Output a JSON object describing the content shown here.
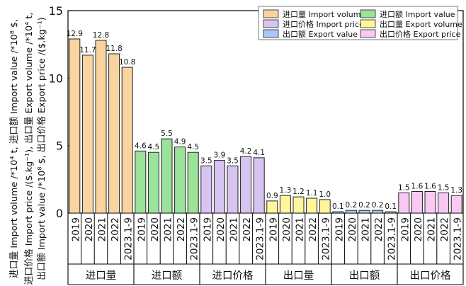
{
  "chart_data": {
    "type": "bar",
    "ylabel_lines": [
      "进口量 Import volume /*10⁴ t, 进口额 Import value /*10⁸ $,",
      "进口价格 Import price /($.kg⁻¹), 出口量 Export volume /*10⁴ t,",
      "出口额 Import value /*10⁸ $, 出口价格 Export price /($.kg⁻¹)"
    ],
    "ylim": [
      0,
      15
    ],
    "y_ticks": [
      0,
      5,
      10,
      15
    ],
    "legend_position": "top-right",
    "legend": [
      {
        "label": "进口量 Import volume",
        "color": "#f8d59e"
      },
      {
        "label": "进口额 Import value",
        "color": "#9be29b"
      },
      {
        "label": "进口价格 Import price",
        "color": "#d7c4f0"
      },
      {
        "label": "出口量 Export volume",
        "color": "#fff59a"
      },
      {
        "label": "出口额 Export value",
        "color": "#a8c8f8"
      },
      {
        "label": "出口价格 Export price",
        "color": "#f9c8f3"
      }
    ],
    "groups": [
      {
        "name": "进口量",
        "color": "#f8d59e",
        "years": [
          "2019",
          "2020",
          "2021",
          "2022",
          "2023.1-9"
        ],
        "values": [
          12.9,
          11.7,
          12.8,
          11.8,
          10.8
        ],
        "value_labels": [
          "12.9",
          "11.7",
          "12.8",
          "11.8",
          "10.8"
        ]
      },
      {
        "name": "进口额",
        "color": "#9be29b",
        "years": [
          "2019",
          "2020",
          "2021",
          "2022",
          "2023.1-9"
        ],
        "values": [
          4.6,
          4.5,
          5.5,
          4.9,
          4.5
        ],
        "value_labels": [
          "4.6",
          "4.5",
          "5.5",
          "4.9",
          "4.5"
        ]
      },
      {
        "name": "进口价格",
        "color": "#d7c4f0",
        "years": [
          "2019",
          "2020",
          "2021",
          "2022",
          "2023.1-9"
        ],
        "values": [
          3.5,
          3.9,
          3.5,
          4.2,
          4.1
        ],
        "value_labels": [
          "3.5",
          "3.9",
          "3.5",
          "4.2",
          "4.1"
        ]
      },
      {
        "name": "出口量",
        "color": "#fff59a",
        "years": [
          "2019",
          "2020",
          "2021",
          "2022",
          "2023.1-9"
        ],
        "values": [
          0.9,
          1.3,
          1.2,
          1.1,
          1.0
        ],
        "value_labels": [
          "0.9",
          "1.3",
          "1.2",
          "1.1",
          "1.0"
        ]
      },
      {
        "name": "出口额",
        "color": "#a8c8f8",
        "years": [
          "2019",
          "2020",
          "2021",
          "2022",
          "2023.1-9"
        ],
        "values": [
          0.1,
          0.2,
          0.2,
          0.2,
          0.1
        ],
        "value_labels": [
          "0.1",
          "0.2",
          "0.2",
          "0.2",
          "0.1"
        ]
      },
      {
        "name": "出口价格",
        "color": "#f9c8f3",
        "years": [
          "2019",
          "2020",
          "2021",
          "2022",
          "2023.1-9"
        ],
        "values": [
          1.5,
          1.6,
          1.6,
          1.5,
          1.3
        ],
        "value_labels": [
          "1.5",
          "1.6",
          "1.6",
          "1.5",
          "1.3"
        ]
      }
    ]
  }
}
